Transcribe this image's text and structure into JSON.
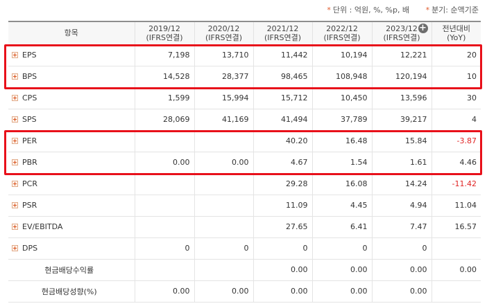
{
  "notes": {
    "unit": "단위 : 억원, %, %p, 배",
    "period": "분기: 순액기준"
  },
  "header": {
    "item_label": "항목",
    "columns": [
      {
        "year": "2019/12",
        "basis": "(IFRS연결)"
      },
      {
        "year": "2020/12",
        "basis": "(IFRS연결)"
      },
      {
        "year": "2021/12",
        "basis": "(IFRS연결)"
      },
      {
        "year": "2022/12",
        "basis": "(IFRS연결)"
      },
      {
        "year": "2023/12",
        "basis": "(IFRS연결)"
      }
    ],
    "yoy_line1": "전년대비",
    "yoy_line2": "(YoY)",
    "more_icon": "plus-circle-icon"
  },
  "rows": [
    {
      "label": "EPS",
      "expandable": true,
      "values": [
        "7,198",
        "13,710",
        "11,442",
        "10,194",
        "12,221"
      ],
      "yoy": "20",
      "yoy_negative": false
    },
    {
      "label": "BPS",
      "expandable": true,
      "values": [
        "14,528",
        "28,377",
        "98,465",
        "108,948",
        "120,194"
      ],
      "yoy": "10",
      "yoy_negative": false
    },
    {
      "label": "CPS",
      "expandable": true,
      "values": [
        "1,599",
        "15,994",
        "15,712",
        "10,450",
        "13,596"
      ],
      "yoy": "30",
      "yoy_negative": false
    },
    {
      "label": "SPS",
      "expandable": true,
      "values": [
        "28,069",
        "41,169",
        "41,494",
        "37,789",
        "39,217"
      ],
      "yoy": "4",
      "yoy_negative": false
    },
    {
      "label": "PER",
      "expandable": true,
      "values": [
        "",
        "",
        "40.20",
        "16.48",
        "15.84"
      ],
      "yoy": "-3.87",
      "yoy_negative": true
    },
    {
      "label": "PBR",
      "expandable": true,
      "values": [
        "0.00",
        "0.00",
        "4.67",
        "1.54",
        "1.61"
      ],
      "yoy": "4.46",
      "yoy_negative": false
    },
    {
      "label": "PCR",
      "expandable": true,
      "values": [
        "",
        "",
        "29.28",
        "16.08",
        "14.24"
      ],
      "yoy": "-11.42",
      "yoy_negative": true
    },
    {
      "label": "PSR",
      "expandable": true,
      "values": [
        "",
        "",
        "11.09",
        "4.45",
        "4.94"
      ],
      "yoy": "11.04",
      "yoy_negative": false
    },
    {
      "label": "EV/EBITDA",
      "expandable": true,
      "values": [
        "",
        "",
        "27.65",
        "6.41",
        "7.47"
      ],
      "yoy": "16.57",
      "yoy_negative": false
    },
    {
      "label": "DPS",
      "expandable": true,
      "values": [
        "0",
        "0",
        "0",
        "0",
        "0"
      ],
      "yoy": "",
      "yoy_negative": false
    },
    {
      "label": "현금배당수익률",
      "expandable": false,
      "values": [
        "",
        "",
        "0.00",
        "0.00",
        "0.00"
      ],
      "yoy": "0.00",
      "yoy_negative": false
    },
    {
      "label": "현금배당성향(%)",
      "expandable": false,
      "values": [
        "0.00",
        "0.00",
        "0.00",
        "0.00",
        "0.00"
      ],
      "yoy": "",
      "yoy_negative": false
    }
  ],
  "highlight_color": "#e8101a",
  "negative_color": "#e02424"
}
